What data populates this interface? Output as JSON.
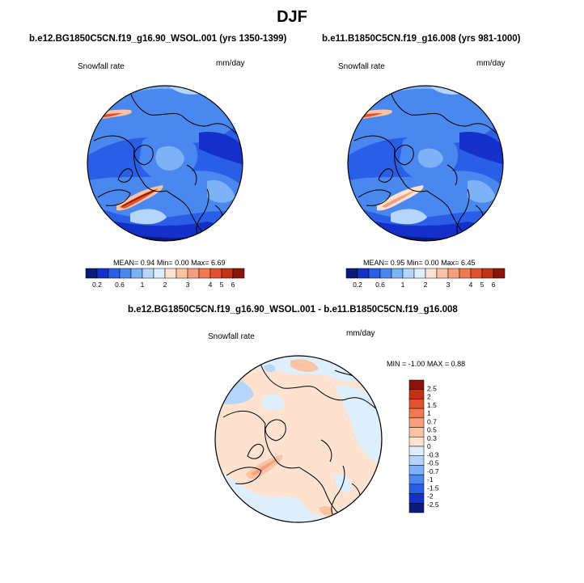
{
  "main_title": "DJF",
  "panels": {
    "left": {
      "title": "b.e12.BG1850C5CN.f19_g16.90_WSOL.001 (yrs 1350-1399)",
      "variable": "Snowfall rate",
      "units": "mm/day",
      "stats": {
        "mean_label": "MEAN=",
        "mean": "0.94",
        "min_label": "Min=",
        "min": "0.00",
        "max_label": "Max=",
        "max": "6.69"
      }
    },
    "right": {
      "title": "b.e11.B1850C5CN.f19_g16.008 (yrs 981-1000)",
      "variable": "Snowfall rate",
      "units": "mm/day",
      "stats": {
        "mean_label": "MEAN=",
        "mean": "0.95",
        "min_label": "Min=",
        "min": "0.00",
        "max_label": "Max=",
        "max": "6.45"
      }
    },
    "diff": {
      "title": "b.e12.BG1850C5CN.f19_g16.90_WSOL.001 - b.e11.B1850C5CN.f19_g16.008",
      "variable": "Snowfall rate",
      "units": "mm/day",
      "stats": {
        "min_label": "MIN =",
        "min": "-1.00",
        "max_label": "MAX =",
        "max": "0.88"
      }
    }
  },
  "colorbars": {
    "abs": {
      "colors": [
        "#0a1a7a",
        "#1530c8",
        "#2a5ee6",
        "#4a88f0",
        "#7eb2f7",
        "#b5d5fb",
        "#ddeefd",
        "#fde2cf",
        "#fbc2a3",
        "#f79f7c",
        "#f0794f",
        "#e0522e",
        "#c23214",
        "#8a1408"
      ],
      "tick_labels": [
        "0.2",
        "0.6",
        "1",
        "2",
        "3",
        "4",
        "5",
        "6"
      ]
    },
    "diff": {
      "colors": [
        "#0a1a7a",
        "#1530c8",
        "#2a5ee6",
        "#4a88f0",
        "#7eb2f7",
        "#b5d5fb",
        "#ddeefd",
        "#fde2cf",
        "#fbc2a3",
        "#f79f7c",
        "#f0794f",
        "#e0522e",
        "#c23214",
        "#8a1408"
      ],
      "tick_labels": [
        "2.5",
        "2",
        "1.5",
        "1",
        "0.7",
        "0.5",
        "0.3",
        "0",
        "-0.3",
        "-0.5",
        "-0.7",
        "-1",
        "-1.5",
        "-2",
        "-2.5"
      ]
    }
  }
}
